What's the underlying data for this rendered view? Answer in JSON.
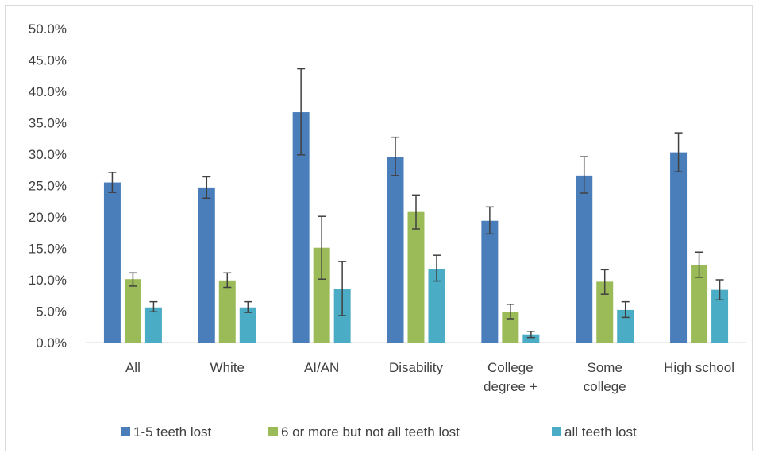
{
  "chart_data": {
    "type": "bar",
    "title": "",
    "xlabel": "",
    "ylabel": "",
    "ylim": [
      0,
      50
    ],
    "y_ticks": [
      0,
      5,
      10,
      15,
      20,
      25,
      30,
      35,
      40,
      45,
      50
    ],
    "y_tick_labels": [
      "0.0%",
      "5.0%",
      "10.0%",
      "15.0%",
      "20.0%",
      "25.0%",
      "30.0%",
      "35.0%",
      "40.0%",
      "45.0%",
      "50.0%"
    ],
    "grid": false,
    "legend_position": "bottom",
    "categories": [
      [
        "All"
      ],
      [
        "White"
      ],
      [
        "AI/AN"
      ],
      [
        "Disability"
      ],
      [
        "College",
        "degree +"
      ],
      [
        "Some",
        "college"
      ],
      [
        "High school"
      ]
    ],
    "series": [
      {
        "name": "1-5 teeth lost",
        "color": "#4a7ebb",
        "values": [
          25.5,
          24.7,
          36.7,
          29.6,
          19.4,
          26.6,
          30.3
        ],
        "error_low": [
          23.9,
          23.0,
          29.9,
          26.6,
          17.3,
          23.8,
          27.2
        ],
        "error_high": [
          27.1,
          26.4,
          43.6,
          32.7,
          21.6,
          29.6,
          33.4
        ]
      },
      {
        "name": "6 or more but not all teeth lost",
        "color": "#9bbb59",
        "values": [
          10.1,
          9.9,
          15.1,
          20.8,
          4.9,
          9.7,
          12.3
        ],
        "error_low": [
          9.0,
          8.8,
          10.1,
          18.1,
          3.8,
          7.7,
          10.4
        ],
        "error_high": [
          11.1,
          11.1,
          20.1,
          23.5,
          6.1,
          11.6,
          14.4
        ]
      },
      {
        "name": "all teeth lost",
        "color": "#4bacc6",
        "values": [
          5.6,
          5.6,
          8.6,
          11.7,
          1.3,
          5.2,
          8.4
        ],
        "error_low": [
          4.9,
          4.8,
          4.3,
          9.8,
          0.8,
          4.0,
          6.8
        ],
        "error_high": [
          6.5,
          6.5,
          12.9,
          13.9,
          1.8,
          6.5,
          10.0
        ]
      }
    ]
  }
}
